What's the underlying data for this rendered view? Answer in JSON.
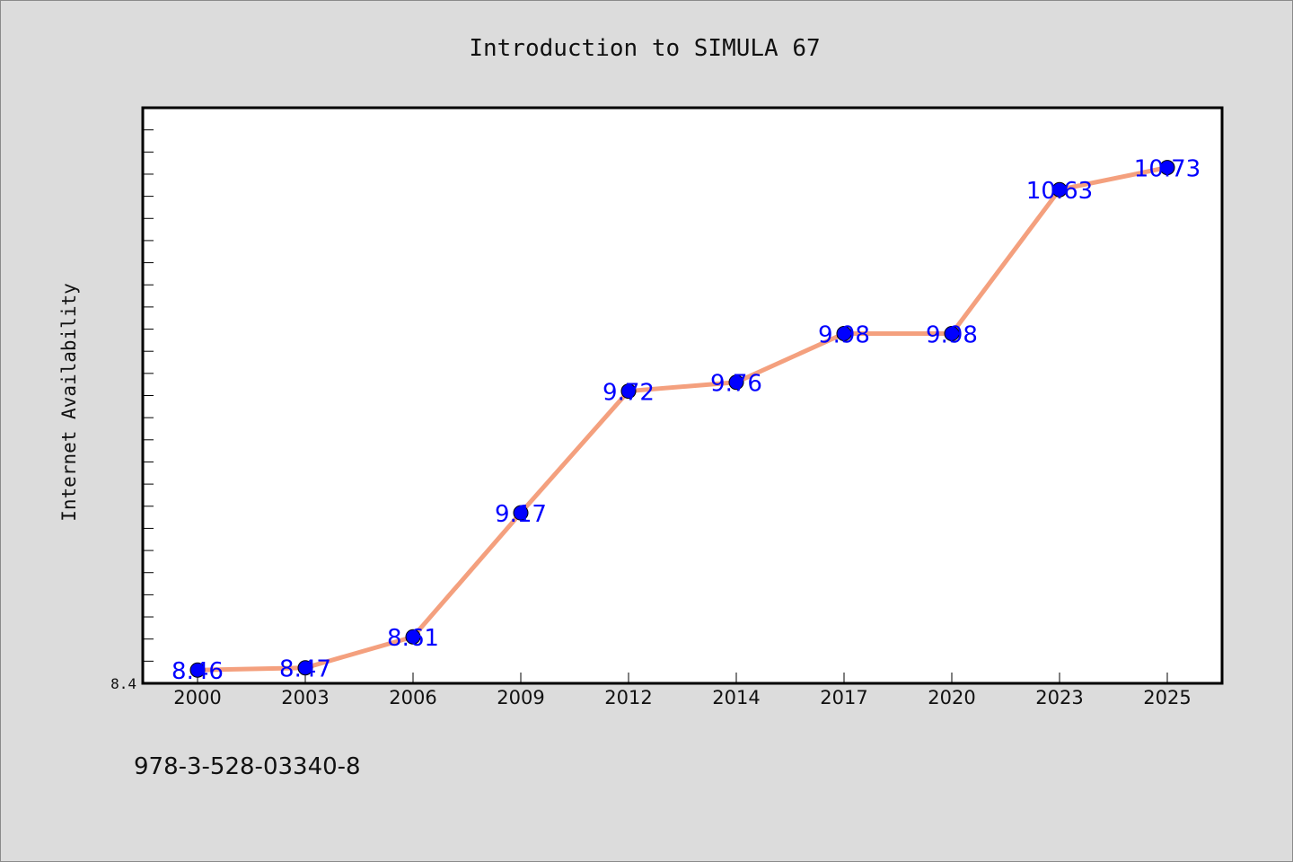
{
  "chart_data": {
    "type": "line",
    "title": "Introduction to SIMULA 67",
    "xlabel": "",
    "ylabel": "Internet Availability",
    "categories": [
      "2000",
      "2003",
      "2006",
      "2009",
      "2012",
      "2014",
      "2017",
      "2020",
      "2023",
      "2025"
    ],
    "series": [
      {
        "values": [
          8.46,
          8.47,
          8.61,
          9.17,
          9.72,
          9.76,
          9.98,
          9.98,
          10.63,
          10.73
        ]
      }
    ],
    "data_labels": [
      "8.46",
      "8.47",
      "8.61",
      "9.17",
      "9.72",
      "9.76",
      "9.98",
      "9.98",
      "10.63",
      "10.73"
    ],
    "ylim": [
      8.4,
      11.0
    ],
    "y_tick_labels": [
      "8.4"
    ],
    "grid": false,
    "legend": "none",
    "colors": {
      "line": "#f4a07e",
      "marker": "#0000ff",
      "data_label": "#0000ff",
      "plot_background": "#ffffff",
      "page_background": "#dcdcdc"
    }
  },
  "footer": {
    "isbn": "978-3-528-03340-8"
  }
}
